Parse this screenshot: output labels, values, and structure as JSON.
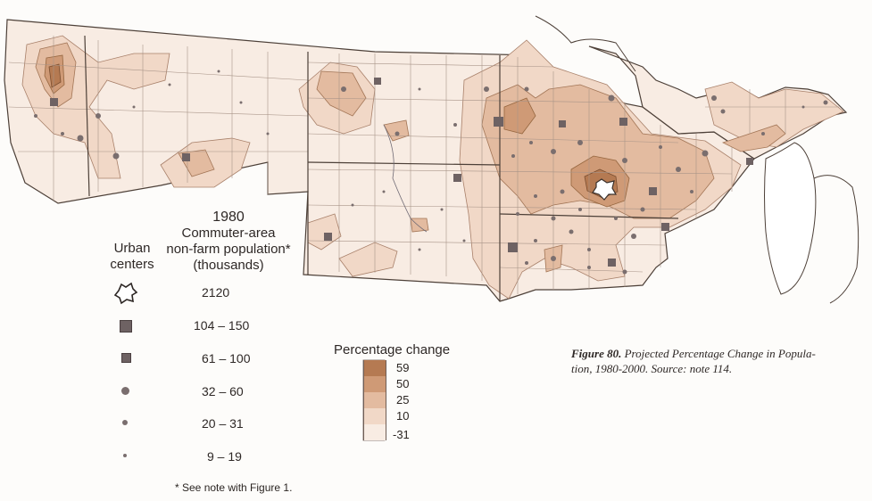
{
  "legend_urban": {
    "title_line1": "Urban",
    "title_line2": "centers",
    "pop_header_line1": "1980",
    "pop_header_line2": "Commuter-area",
    "pop_header_line3": "non-farm population*",
    "pop_header_line4": "(thousands)",
    "classes": [
      {
        "symbol": "star-outline-icon",
        "label": "2120"
      },
      {
        "symbol": "large-square-icon",
        "label": "104 – 150"
      },
      {
        "symbol": "small-square-icon",
        "label": "61 – 100"
      },
      {
        "symbol": "large-dot-icon",
        "label": "32 – 60"
      },
      {
        "symbol": "medium-dot-icon",
        "label": "20 – 31"
      },
      {
        "symbol": "small-dot-icon",
        "label": "9 – 19"
      }
    ],
    "footnote": "* See note with Figure 1."
  },
  "legend_change": {
    "title": "Percentage change",
    "breaks": [
      "59",
      "50",
      "25",
      "10",
      "-31"
    ],
    "colors": [
      "#b57a52",
      "#cf9a76",
      "#e3bba0",
      "#f1d8c7",
      "#f8ece3"
    ]
  },
  "caption": {
    "label": "Figure 80.",
    "line1": "Projected Percentage Change in Popula-",
    "line2": "tion, 1980-2000. Source: note 114."
  },
  "colors": {
    "background": "#fdfcfa",
    "county_line": "#a89488",
    "state_line": "#4d4038",
    "symbol": "#6e6263"
  }
}
